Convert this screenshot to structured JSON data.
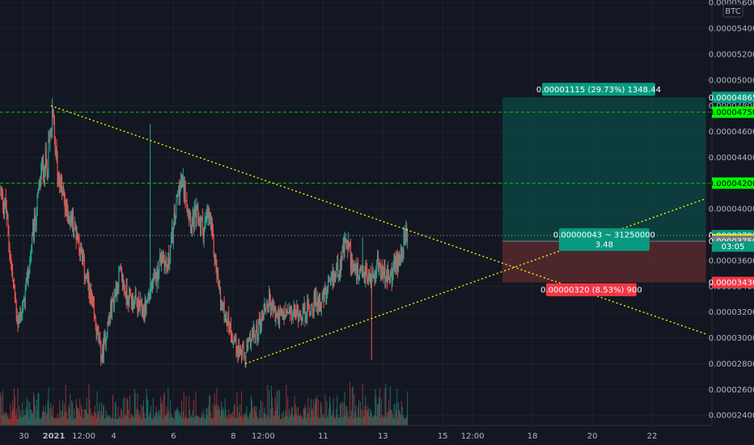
{
  "chart_data": {
    "type": "candlestick",
    "quote_currency": "BTC",
    "y_ticks": [
      "0.00002400",
      "0.00002600",
      "0.00002800",
      "0.00003000",
      "0.00003200",
      "0.00003400",
      "0.00003600",
      "0.00003800",
      "0.00004000",
      "0.00004200",
      "0.00004400",
      "0.00004600",
      "0.00004800",
      "0.00005000",
      "0.00005200",
      "0.00005400",
      "0.00005600"
    ],
    "y_range": [
      2.32e-05,
      5.62e-05
    ],
    "x_ticks": [
      {
        "label": "30",
        "t": 3
      },
      {
        "label": "2021",
        "t": 8,
        "bold": true
      },
      {
        "label": "12:00",
        "t": 13
      },
      {
        "label": "4",
        "t": 18
      },
      {
        "label": "6",
        "t": 28
      },
      {
        "label": "8",
        "t": 38
      },
      {
        "label": "12:00",
        "t": 43
      },
      {
        "label": "11",
        "t": 53
      },
      {
        "label": "13",
        "t": 63
      },
      {
        "label": "15",
        "t": 73
      },
      {
        "label": "12:00",
        "t": 78
      },
      {
        "label": "18",
        "t": 88
      },
      {
        "label": "20",
        "t": 98
      },
      {
        "label": "22",
        "t": 108
      }
    ],
    "x_range": [
      -1,
      118
    ],
    "candle_start": -1,
    "candle_step": 0.125,
    "anchors": [
      [
        -1,
        4.15e-05
      ],
      [
        0,
        4e-05
      ],
      [
        1,
        3.5e-05
      ],
      [
        2,
        3.12e-05
      ],
      [
        3,
        3.25e-05
      ],
      [
        4,
        3.6e-05
      ],
      [
        5,
        3.95e-05
      ],
      [
        6,
        4.3e-05
      ],
      [
        7,
        4.4e-05
      ],
      [
        7.8,
        4.7e-05
      ],
      [
        8.6,
        4.3e-05
      ],
      [
        10,
        4e-05
      ],
      [
        11,
        3.9e-05
      ],
      [
        12,
        3.8e-05
      ],
      [
        13,
        3.55e-05
      ],
      [
        14,
        3.35e-05
      ],
      [
        15,
        3.1e-05
      ],
      [
        16,
        2.85e-05
      ],
      [
        17,
        3.1e-05
      ],
      [
        18,
        3.3e-05
      ],
      [
        19,
        3.5e-05
      ],
      [
        20,
        3.35e-05
      ],
      [
        21,
        3.3e-05
      ],
      [
        22,
        3.25e-05
      ],
      [
        23,
        3.2e-05
      ],
      [
        24,
        3.35e-05
      ],
      [
        25,
        3.45e-05
      ],
      [
        26,
        3.65e-05
      ],
      [
        27,
        3.55e-05
      ],
      [
        28,
        3.85e-05
      ],
      [
        29,
        4.2e-05
      ],
      [
        30,
        4.15e-05
      ],
      [
        31,
        3.9e-05
      ],
      [
        32,
        3.95e-05
      ],
      [
        33,
        3.85e-05
      ],
      [
        34,
        3.95e-05
      ],
      [
        35,
        3.6e-05
      ],
      [
        36,
        3.25e-05
      ],
      [
        37,
        3.15e-05
      ],
      [
        38,
        3e-05
      ],
      [
        39,
        2.9e-05
      ],
      [
        40,
        2.85e-05
      ],
      [
        41,
        3e-05
      ],
      [
        42,
        3.05e-05
      ],
      [
        43,
        3.2e-05
      ],
      [
        44,
        3.3e-05
      ],
      [
        45,
        3.18e-05
      ],
      [
        46,
        3.16e-05
      ],
      [
        47,
        3.18e-05
      ],
      [
        48,
        3.18e-05
      ],
      [
        49,
        3.2e-05
      ],
      [
        50,
        3.2e-05
      ],
      [
        51,
        3.25e-05
      ],
      [
        52,
        3.28e-05
      ],
      [
        53,
        3.3e-05
      ],
      [
        54,
        3.38e-05
      ],
      [
        55,
        3.5e-05
      ],
      [
        56,
        3.6e-05
      ],
      [
        57,
        3.75e-05
      ],
      [
        58,
        3.55e-05
      ],
      [
        59,
        3.45e-05
      ],
      [
        60,
        3.5e-05
      ],
      [
        61,
        3.45e-05
      ],
      [
        62,
        3.58e-05
      ],
      [
        63,
        3.5e-05
      ],
      [
        64,
        3.45e-05
      ],
      [
        65,
        3.55e-05
      ],
      [
        66,
        3.66e-05
      ],
      [
        67,
        3.79e-05
      ]
    ],
    "spikes": [
      [
        24,
        4.66e-05
      ],
      [
        59.5,
        3.78e-05
      ],
      [
        61,
        2.83e-05
      ]
    ],
    "volume_max": 9e-08,
    "last_price": "0.00003793",
    "countdown": "03:05",
    "price_lines": [
      {
        "price": 4.75e-05,
        "label": "0.00004750",
        "color": "#00ff00",
        "text": "#000000",
        "style": "dashed"
      },
      {
        "price": 4.2e-05,
        "label": "0.00004200",
        "color": "#00ff00",
        "text": "#000000",
        "style": "dashed"
      },
      {
        "price": 3.793e-05,
        "label": "0.00003793",
        "color": "#089981",
        "text": "#ffffff",
        "style": "dotted"
      },
      {
        "price": 3.76e-05,
        "label": "0.00003760",
        "color": "#ffff00",
        "text": "#000000",
        "style": "none"
      },
      {
        "price": 3.75e-05,
        "label": "0.00003750",
        "color": "#787b86",
        "text": "#ffffff",
        "style": "none"
      },
      {
        "price": 3.43e-05,
        "label": "0.00003430",
        "color": "#f23645",
        "text": "#ffffff",
        "style": "none"
      },
      {
        "price": 4.865e-05,
        "label": "0.00004865",
        "color": "#089981",
        "text": "#ffffff",
        "style": "none"
      }
    ],
    "trendlines": [
      {
        "t1": 7.5,
        "p1": 4.8e-05,
        "t2": 117,
        "p2": 3.03e-05
      },
      {
        "t1": 40,
        "p1": 2.8e-05,
        "t2": 117,
        "p2": 4.08e-05
      }
    ],
    "position": {
      "t_start": 83,
      "t_end": 117,
      "entry": 3.75e-05,
      "target": 4.865e-05,
      "stop": 3.43e-05,
      "target_label": "0.00001115 (29.73%) 1348.44",
      "entry_label_line1": "0.00000043 ~ 31250000",
      "entry_label_line2": "3.48",
      "stop_label": "0.00000320 (8.53%) 900"
    },
    "colors": {
      "up": "#26a69a",
      "down": "#ef5350",
      "volume_up": "#1b6b63",
      "volume_down": "#8d3535"
    }
  }
}
